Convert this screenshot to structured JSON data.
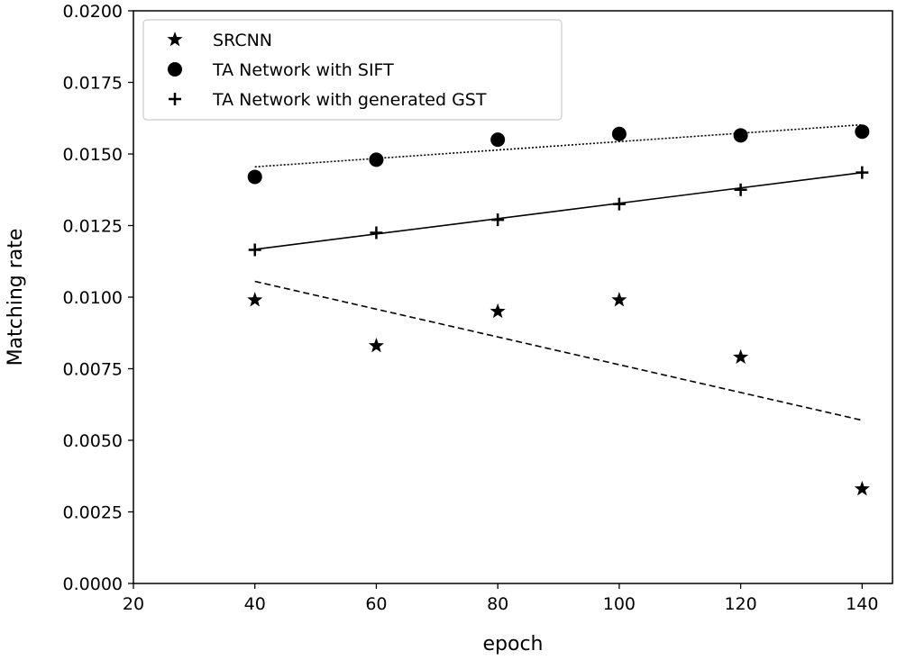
{
  "chart_data": {
    "type": "scatter",
    "xlabel": "epoch",
    "ylabel": "Matching rate",
    "xlim": [
      20,
      145
    ],
    "ylim": [
      0.0,
      0.02
    ],
    "x_ticks": [
      "20",
      "40",
      "60",
      "80",
      "100",
      "120",
      "140"
    ],
    "x_tick_values": [
      20,
      40,
      60,
      80,
      100,
      120,
      140
    ],
    "y_ticks": [
      "0.0000",
      "0.0025",
      "0.0050",
      "0.0075",
      "0.0100",
      "0.0125",
      "0.0150",
      "0.0175",
      "0.0200"
    ],
    "y_tick_values": [
      0.0,
      0.0025,
      0.005,
      0.0075,
      0.01,
      0.0125,
      0.015,
      0.0175,
      0.02
    ],
    "legend_position": "top-left",
    "grid": false,
    "series": [
      {
        "name": "SRCNN",
        "marker": "star",
        "x": [
          40,
          60,
          80,
          100,
          120,
          140
        ],
        "y": [
          0.0099,
          0.0083,
          0.0095,
          0.0099,
          0.0079,
          0.0033
        ],
        "trend": {
          "style": "dashed",
          "x": [
            40,
            140
          ],
          "y": [
            0.01055,
            0.0057
          ]
        }
      },
      {
        "name": "TA Network with SIFT",
        "marker": "circle",
        "x": [
          40,
          60,
          80,
          100,
          120,
          140
        ],
        "y": [
          0.0142,
          0.0148,
          0.0155,
          0.0157,
          0.01565,
          0.01578
        ],
        "trend": {
          "style": "dotted",
          "x": [
            40,
            140
          ],
          "y": [
            0.01455,
            0.01602
          ]
        }
      },
      {
        "name": "TA Network with generated GST",
        "marker": "plus",
        "x": [
          40,
          60,
          80,
          100,
          120,
          140
        ],
        "y": [
          0.01165,
          0.01225,
          0.0127,
          0.01325,
          0.01375,
          0.01435
        ],
        "trend": {
          "style": "solid",
          "x": [
            40,
            140
          ],
          "y": [
            0.01167,
            0.01435
          ]
        }
      }
    ]
  }
}
